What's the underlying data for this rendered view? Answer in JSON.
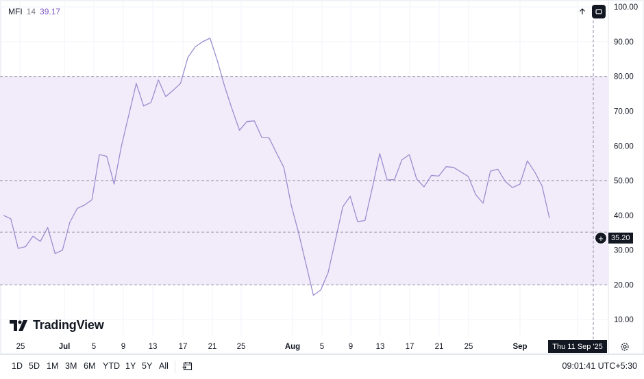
{
  "legend": {
    "name": "MFI",
    "period": "14",
    "value": "39.17"
  },
  "chart_data": {
    "type": "line",
    "series": [
      {
        "values": [
          40,
          39,
          30.5,
          31,
          34,
          32.5,
          36.5,
          29,
          30,
          38,
          42,
          43,
          44.5,
          57.5,
          57,
          49,
          60,
          69,
          78,
          71.5,
          72.5,
          79,
          74.2,
          76,
          78,
          85.5,
          88.5,
          90,
          91,
          84.5,
          77,
          70.5,
          64.5,
          67,
          67.2,
          62.5,
          62.3,
          58,
          53.8,
          43,
          35,
          26,
          17,
          18.5,
          23.5,
          33,
          42.5,
          45.5,
          38.2,
          38.5,
          48,
          57.8,
          50.2,
          50.3,
          56,
          57.5,
          50.5,
          48.2,
          51.5,
          51.3,
          54,
          53.8,
          52.5,
          51.2,
          46,
          43.5,
          52.7,
          53.3,
          49.8,
          48,
          49,
          55.7,
          52.5,
          48.5,
          39.2
        ]
      }
    ],
    "yaxis": {
      "ticks": [
        "100.00",
        "90.00",
        "80.00",
        "70.00",
        "60.00",
        "50.00",
        "40.00",
        "30.00",
        "20.00",
        "10.00"
      ],
      "range": [
        5.5,
        102
      ]
    },
    "xaxis": {
      "ticks": [
        "25",
        "Jul",
        "5",
        "9",
        "13",
        "17",
        "21",
        "25",
        "Aug",
        "5",
        "9",
        "13",
        "17",
        "21",
        "25",
        "Sep"
      ]
    },
    "bands": {
      "upper": 80,
      "middle": 50,
      "lower": 20
    },
    "crosshair": {
      "price": "35.20",
      "price_value": 35.2,
      "date": "Thu 11 Sep '25"
    },
    "line_color": "#9b8ccf",
    "band_fill": "#f2ecfa",
    "grid": true
  },
  "logo_text": "TradingView",
  "ranges": [
    "1D",
    "5D",
    "1M",
    "3M",
    "6M",
    "YTD",
    "1Y",
    "5Y",
    "All"
  ],
  "clock": "09:01:41 UTC+5:30"
}
